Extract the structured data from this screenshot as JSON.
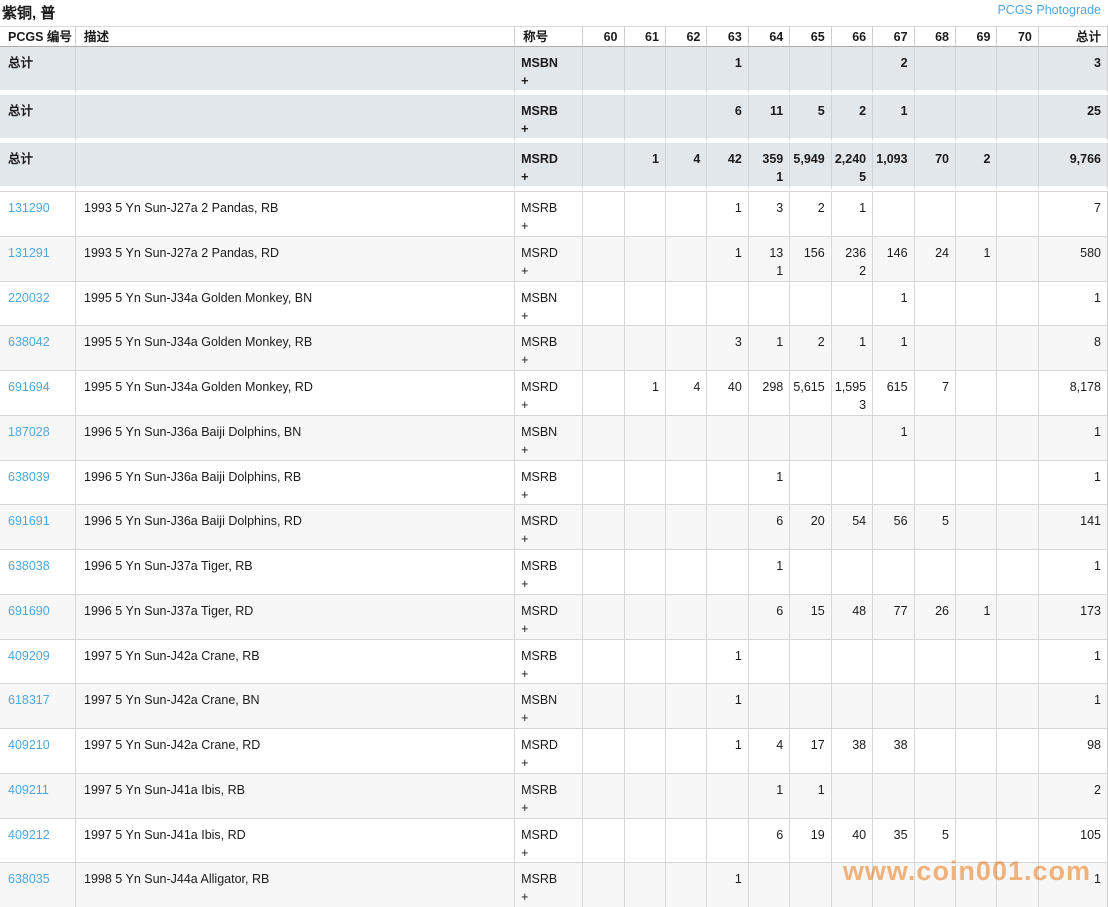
{
  "page": {
    "title": "紫铜, 普",
    "photograde_link": "PCGS Photograde"
  },
  "colors": {
    "accent_blue": "#4fa7e0",
    "total_row_bg": "#e2e7ec",
    "alt_row_bg": "#f7f7f8",
    "border": "#d6d6d6",
    "watermark_orange": "#f7a55c"
  },
  "watermark": "www.coin001.com",
  "table": {
    "headers": {
      "pcgs": "PCGS 编号",
      "desc": "描述",
      "designation": "称号",
      "grades": [
        "60",
        "61",
        "62",
        "63",
        "64",
        "65",
        "66",
        "67",
        "68",
        "69",
        "70"
      ],
      "total": "总计"
    },
    "designation_suffix": "+",
    "rows": [
      {
        "kind": "total",
        "pcgs": "总计",
        "desc": "",
        "designation": "MSBN",
        "grades": [
          "",
          "",
          "",
          "1",
          "",
          "",
          "",
          "2",
          "",
          "",
          ""
        ],
        "total": "3"
      },
      {
        "kind": "total",
        "pcgs": "总计",
        "desc": "",
        "designation": "MSRB",
        "grades": [
          "",
          "",
          "",
          "6",
          "11",
          "5",
          "2",
          "1",
          "",
          "",
          ""
        ],
        "total": "25"
      },
      {
        "kind": "total",
        "pcgs": "总计",
        "desc": "",
        "designation": "MSRD",
        "grades": [
          "",
          "1",
          "4",
          "42",
          "359\n1",
          "5,949",
          "2,240\n5",
          "1,093",
          "70",
          "2",
          ""
        ],
        "total": "9,766"
      },
      {
        "kind": "data",
        "pcgs": "131290",
        "desc": "1993 5 Yn Sun-J27a 2 Pandas, RB",
        "designation": "MSRB",
        "grades": [
          "",
          "",
          "",
          "1",
          "3",
          "2",
          "1",
          "",
          "",
          "",
          ""
        ],
        "total": "7"
      },
      {
        "kind": "data",
        "pcgs": "131291",
        "desc": "1993 5 Yn Sun-J27a 2 Pandas, RD",
        "designation": "MSRD",
        "grades": [
          "",
          "",
          "",
          "1",
          "13\n1",
          "156",
          "236\n2",
          "146",
          "24",
          "1",
          ""
        ],
        "total": "580"
      },
      {
        "kind": "data",
        "pcgs": "220032",
        "desc": "1995 5 Yn Sun-J34a Golden Monkey, BN",
        "designation": "MSBN",
        "grades": [
          "",
          "",
          "",
          "",
          "",
          "",
          "",
          "1",
          "",
          "",
          ""
        ],
        "total": "1"
      },
      {
        "kind": "data",
        "pcgs": "638042",
        "desc": "1995 5 Yn Sun-J34a Golden Monkey, RB",
        "designation": "MSRB",
        "grades": [
          "",
          "",
          "",
          "3",
          "1",
          "2",
          "1",
          "1",
          "",
          "",
          ""
        ],
        "total": "8"
      },
      {
        "kind": "data",
        "pcgs": "691694",
        "desc": "1995 5 Yn Sun-J34a Golden Monkey, RD",
        "designation": "MSRD",
        "grades": [
          "",
          "1",
          "4",
          "40",
          "298",
          "5,615",
          "1,595\n3",
          "615",
          "7",
          "",
          ""
        ],
        "total": "8,178"
      },
      {
        "kind": "data",
        "pcgs": "187028",
        "desc": "1996 5 Yn Sun-J36a Baiji Dolphins, BN",
        "designation": "MSBN",
        "grades": [
          "",
          "",
          "",
          "",
          "",
          "",
          "",
          "1",
          "",
          "",
          ""
        ],
        "total": "1"
      },
      {
        "kind": "data",
        "pcgs": "638039",
        "desc": "1996 5 Yn Sun-J36a Baiji Dolphins, RB",
        "designation": "MSRB",
        "grades": [
          "",
          "",
          "",
          "",
          "1",
          "",
          "",
          "",
          "",
          "",
          ""
        ],
        "total": "1"
      },
      {
        "kind": "data",
        "pcgs": "691691",
        "desc": "1996 5 Yn Sun-J36a Baiji Dolphins, RD",
        "designation": "MSRD",
        "grades": [
          "",
          "",
          "",
          "",
          "6",
          "20",
          "54",
          "56",
          "5",
          "",
          ""
        ],
        "total": "141"
      },
      {
        "kind": "data",
        "pcgs": "638038",
        "desc": "1996 5 Yn Sun-J37a Tiger, RB",
        "designation": "MSRB",
        "grades": [
          "",
          "",
          "",
          "",
          "1",
          "",
          "",
          "",
          "",
          "",
          ""
        ],
        "total": "1"
      },
      {
        "kind": "data",
        "pcgs": "691690",
        "desc": "1996 5 Yn Sun-J37a Tiger, RD",
        "designation": "MSRD",
        "grades": [
          "",
          "",
          "",
          "",
          "6",
          "15",
          "48",
          "77",
          "26",
          "1",
          ""
        ],
        "total": "173"
      },
      {
        "kind": "data",
        "pcgs": "409209",
        "desc": "1997 5 Yn Sun-J42a Crane, RB",
        "designation": "MSRB",
        "grades": [
          "",
          "",
          "",
          "1",
          "",
          "",
          "",
          "",
          "",
          "",
          ""
        ],
        "total": "1"
      },
      {
        "kind": "data",
        "pcgs": "618317",
        "desc": "1997 5 Yn Sun-J42a Crane, BN",
        "designation": "MSBN",
        "grades": [
          "",
          "",
          "",
          "1",
          "",
          "",
          "",
          "",
          "",
          "",
          ""
        ],
        "total": "1"
      },
      {
        "kind": "data",
        "pcgs": "409210",
        "desc": "1997 5 Yn Sun-J42a Crane, RD",
        "designation": "MSRD",
        "grades": [
          "",
          "",
          "",
          "1",
          "4",
          "17",
          "38",
          "38",
          "",
          "",
          ""
        ],
        "total": "98"
      },
      {
        "kind": "data",
        "pcgs": "409211",
        "desc": "1997 5 Yn Sun-J41a Ibis, RB",
        "designation": "MSRB",
        "grades": [
          "",
          "",
          "",
          "",
          "1",
          "1",
          "",
          "",
          "",
          "",
          ""
        ],
        "total": "2"
      },
      {
        "kind": "data",
        "pcgs": "409212",
        "desc": "1997 5 Yn Sun-J41a Ibis, RD",
        "designation": "MSRD",
        "grades": [
          "",
          "",
          "",
          "",
          "6",
          "19",
          "40",
          "35",
          "5",
          "",
          ""
        ],
        "total": "105"
      },
      {
        "kind": "data",
        "pcgs": "638035",
        "desc": "1998 5 Yn Sun-J44a Alligator, RB",
        "designation": "MSRB",
        "grades": [
          "",
          "",
          "",
          "1",
          "",
          "",
          "",
          "",
          "",
          "",
          ""
        ],
        "total": "1"
      }
    ]
  }
}
